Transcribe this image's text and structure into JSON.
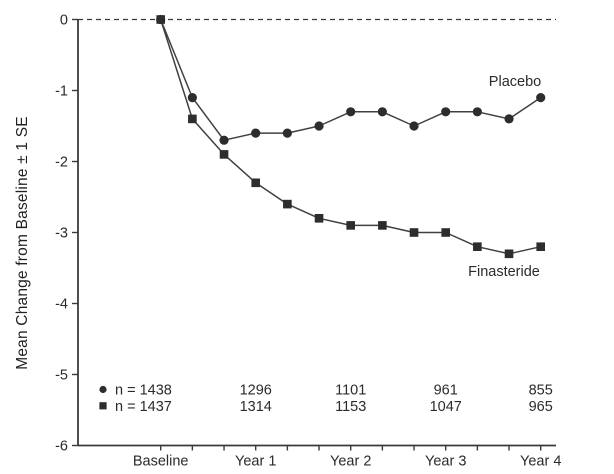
{
  "figure": {
    "background": "#ffffff",
    "text_color": "#2b2b2b",
    "axis_color": "#3a3a3a",
    "line_color": "#404040",
    "marker_color": "#2d2d2d"
  },
  "chart_data": {
    "type": "line",
    "title": "",
    "xlabel": "",
    "ylabel": "Mean Change from Baseline ± 1 SE",
    "ylim": [
      -6,
      0
    ],
    "grid": "off",
    "zero_reference_line": "dashed",
    "legend_position": "inline-labels",
    "y_ticks": [
      0,
      -1,
      -2,
      -3,
      -4,
      -5,
      -6
    ],
    "y_tick_labels": [
      "0",
      "-1",
      "-2",
      "-3",
      "-4",
      "-5",
      "-6"
    ],
    "x_major_ticks_years": [
      0,
      1,
      2,
      3,
      4
    ],
    "x_tick_labels": [
      "Baseline",
      "Year 1",
      "Year 2",
      "Year 3",
      "Year 4"
    ],
    "x_minor_interval_years": 0.3333,
    "x_years": [
      0,
      0.3333,
      0.6667,
      1,
      1.3333,
      1.6667,
      2,
      2.3333,
      2.6667,
      3,
      3.3333,
      3.6667,
      4
    ],
    "series": [
      {
        "name": "Placebo",
        "marker": "circle",
        "values": [
          0,
          -1.1,
          -1.7,
          -1.6,
          -1.6,
          -1.5,
          -1.3,
          -1.3,
          -1.5,
          -1.3,
          -1.3,
          -1.4,
          -1.1
        ]
      },
      {
        "name": "Finasteride",
        "marker": "square",
        "values": [
          0,
          -1.4,
          -1.9,
          -2.3,
          -2.6,
          -2.8,
          -2.9,
          -2.9,
          -3.0,
          -3.0,
          -3.2,
          -3.3,
          -3.2
        ]
      }
    ],
    "n_table": {
      "count_years": [
        1,
        2,
        3,
        4
      ],
      "rows": [
        {
          "marker": "circle",
          "label": "n = 1438",
          "counts": [
            "1296",
            "1101",
            "961",
            "855"
          ]
        },
        {
          "marker": "square",
          "label": "n = 1437",
          "counts": [
            "1314",
            "1153",
            "1047",
            "965"
          ]
        }
      ]
    }
  }
}
